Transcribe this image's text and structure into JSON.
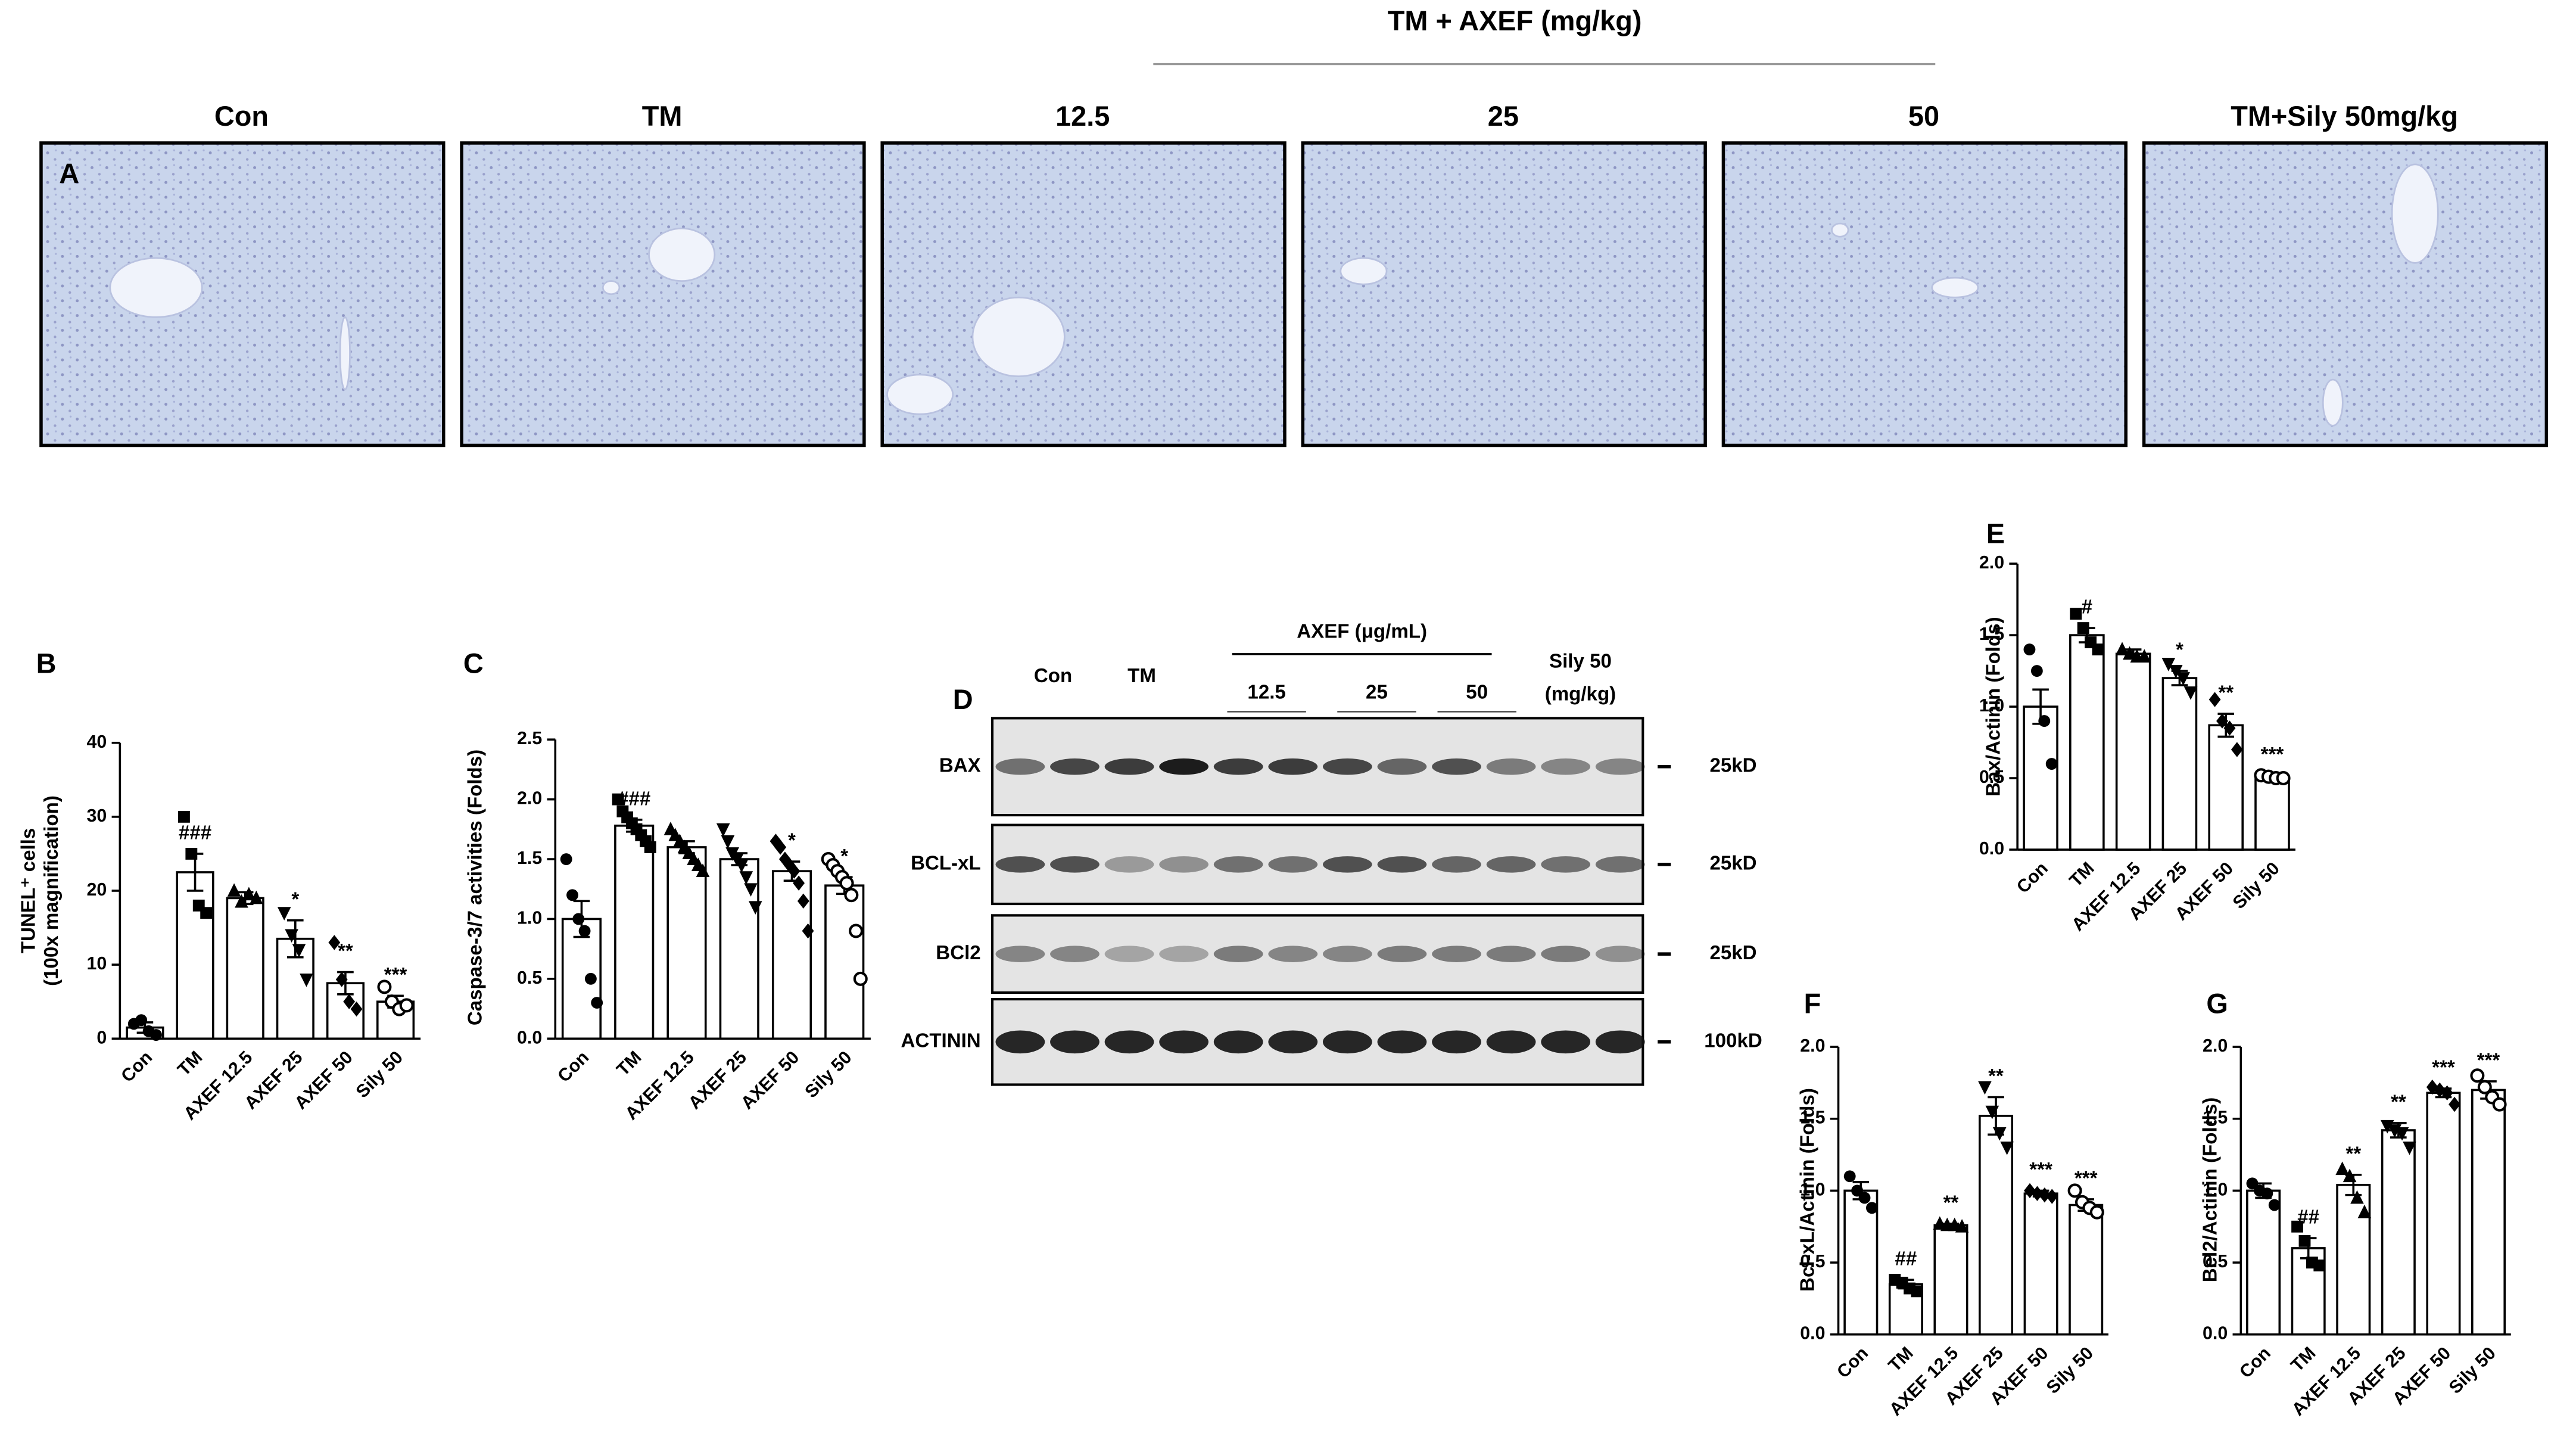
{
  "panel_a": {
    "letter": "A",
    "header": "TM + AXEF (mg/kg)",
    "titles": [
      "Con",
      "TM",
      "12.5",
      "25",
      "50",
      "TM+Sily 50mg/kg"
    ]
  },
  "panel_d": {
    "letter": "D",
    "groups": [
      "Con",
      "TM"
    ],
    "treatment": "AXEF (μg/mL)",
    "doses": [
      "12.5",
      "25",
      "50"
    ],
    "reference": [
      "Sily 50",
      "(mg/kg)"
    ],
    "rows": [
      {
        "label": "BAX",
        "size": "25kD"
      },
      {
        "label": "BCL-xL",
        "size": "25kD"
      },
      {
        "label": "BCl2",
        "size": "25kD"
      },
      {
        "label": "ACTININ",
        "size": "100kD"
      }
    ]
  },
  "chart_data": [
    {
      "type": "bar",
      "title": "B",
      "ylabel": [
        "TUNEL⁺ cells",
        "(100x magnification)"
      ],
      "categories": [
        "Con",
        "TM",
        "AXEF 12.5",
        "AXEF 25",
        "AXEF 50",
        "Sily 50"
      ],
      "color": "#000000",
      "values": [
        1.5,
        22.5,
        19,
        13.5,
        7.5,
        5
      ],
      "errors": [
        0.7,
        2.5,
        0.8,
        2.5,
        1.5,
        0.8
      ],
      "points": [
        [
          2,
          2.5,
          1,
          0.5
        ],
        [
          30,
          25,
          18,
          17
        ],
        [
          20,
          18.5,
          19.5,
          19
        ],
        [
          17,
          14,
          12,
          8
        ],
        [
          13,
          8,
          5,
          4
        ],
        [
          7,
          5,
          4,
          4.5
        ]
      ],
      "annotations": [
        null,
        "###",
        null,
        "*",
        "**",
        "***"
      ],
      "ylim": [
        0,
        40
      ],
      "yticks": [
        0,
        10,
        20,
        30,
        40
      ]
    },
    {
      "type": "bar",
      "title": "C",
      "ylabel": [
        "Caspase-3/7 activities (Folds)"
      ],
      "categories": [
        "Con",
        "TM",
        "AXEF 12.5",
        "AXEF 25",
        "AXEF 50",
        "Sily 50"
      ],
      "color": "#000000",
      "values": [
        1.0,
        1.78,
        1.6,
        1.5,
        1.4,
        1.28
      ],
      "errors": [
        0.15,
        0.05,
        0.05,
        0.05,
        0.08,
        0.07
      ],
      "points": [
        [
          1.5,
          1.2,
          1.0,
          0.9,
          0.5,
          0.3
        ],
        [
          2.0,
          1.9,
          1.85,
          1.8,
          1.75,
          1.7,
          1.65,
          1.6
        ],
        [
          1.75,
          1.7,
          1.65,
          1.6,
          1.55,
          1.5,
          1.45,
          1.4
        ],
        [
          1.75,
          1.65,
          1.55,
          1.5,
          1.45,
          1.35,
          1.25,
          1.1
        ],
        [
          1.65,
          1.6,
          1.5,
          1.45,
          1.4,
          1.3,
          1.15,
          0.9
        ],
        [
          1.5,
          1.45,
          1.4,
          1.35,
          1.3,
          1.2,
          0.9,
          0.5
        ]
      ],
      "annotations": [
        null,
        "###",
        null,
        null,
        "*",
        "*"
      ],
      "ylim": [
        0,
        2.5
      ],
      "yticks": [
        {
          "value": 0,
          "label": "0.0"
        },
        0.5,
        {
          "value": 1,
          "label": "1.0"
        },
        1.5,
        {
          "value": 2,
          "label": "2.0"
        },
        2.5
      ]
    },
    {
      "type": "bar",
      "title": "E",
      "ylabel": [
        "Bax/Actinin (Folds)"
      ],
      "categories": [
        "Con",
        "TM",
        "AXEF 12.5",
        "AXEF 25",
        "AXEF 50",
        "Sily 50"
      ],
      "color": "#000000",
      "values": [
        1.0,
        1.5,
        1.37,
        1.2,
        0.87,
        0.5
      ],
      "errors": [
        0.12,
        0.05,
        0.03,
        0.05,
        0.08,
        0.02
      ],
      "points": [
        [
          1.4,
          1.25,
          0.9,
          0.6
        ],
        [
          1.65,
          1.55,
          1.45,
          1.4
        ],
        [
          1.4,
          1.37,
          1.35,
          1.35
        ],
        [
          1.3,
          1.25,
          1.2,
          1.1
        ],
        [
          1.05,
          0.9,
          0.85,
          0.7
        ],
        [
          0.52,
          0.51,
          0.5,
          0.5
        ]
      ],
      "annotations": [
        null,
        "#",
        null,
        "*",
        "**",
        "***"
      ],
      "ylim": [
        0,
        2
      ],
      "yticks": [
        {
          "value": 0,
          "label": "0.0"
        },
        0.5,
        {
          "value": 1,
          "label": "1.0"
        },
        1.5,
        {
          "value": 2,
          "label": "2.0"
        }
      ]
    },
    {
      "type": "bar",
      "title": "F",
      "ylabel": [
        "Bcl-xL/Actinin (Folds)"
      ],
      "categories": [
        "Con",
        "TM",
        "AXEF 12.5",
        "AXEF 25",
        "AXEF 50",
        "Sily 50"
      ],
      "color": "#000000",
      "values": [
        1.0,
        0.35,
        0.76,
        1.52,
        0.98,
        0.9
      ],
      "errors": [
        0.06,
        0.03,
        0.01,
        0.13,
        0.02,
        0.04
      ],
      "points": [
        [
          1.1,
          1.0,
          0.95,
          0.88
        ],
        [
          0.38,
          0.36,
          0.32,
          0.3
        ],
        [
          0.77,
          0.76,
          0.76,
          0.75
        ],
        [
          1.72,
          1.55,
          1.4,
          1.3
        ],
        [
          1.0,
          0.98,
          0.97,
          0.96
        ],
        [
          1.0,
          0.92,
          0.88,
          0.85
        ]
      ],
      "annotations": [
        null,
        "##",
        "**",
        "**",
        "***",
        "***"
      ],
      "ylim": [
        0,
        2
      ],
      "yticks": [
        {
          "value": 0,
          "label": "0.0"
        },
        0.5,
        {
          "value": 1,
          "label": "1.0"
        },
        1.5,
        {
          "value": 2,
          "label": "2.0"
        }
      ]
    },
    {
      "type": "bar",
      "title": "G",
      "ylabel": [
        "Bcl2/Actinin (Folds)"
      ],
      "categories": [
        "Con",
        "TM",
        "AXEF 12.5",
        "AXEF 25",
        "AXEF 50",
        "Sily 50"
      ],
      "color": "#000000",
      "values": [
        1.0,
        0.6,
        1.04,
        1.42,
        1.68,
        1.7
      ],
      "errors": [
        0.05,
        0.07,
        0.07,
        0.05,
        0.03,
        0.06
      ],
      "points": [
        [
          1.05,
          1.0,
          0.98,
          0.9
        ],
        [
          0.75,
          0.65,
          0.5,
          0.48
        ],
        [
          1.15,
          1.1,
          0.95,
          0.85
        ],
        [
          1.45,
          1.42,
          1.4,
          1.3
        ],
        [
          1.72,
          1.7,
          1.68,
          1.6
        ],
        [
          1.8,
          1.72,
          1.65,
          1.6
        ]
      ],
      "annotations": [
        null,
        "##",
        "**",
        "**",
        "***",
        "***"
      ],
      "ylim": [
        0,
        2
      ],
      "yticks": [
        {
          "value": 0,
          "label": "0.0"
        },
        0.5,
        {
          "value": 1,
          "label": "1.0"
        },
        1.5,
        {
          "value": 2,
          "label": "2.0"
        }
      ]
    }
  ]
}
